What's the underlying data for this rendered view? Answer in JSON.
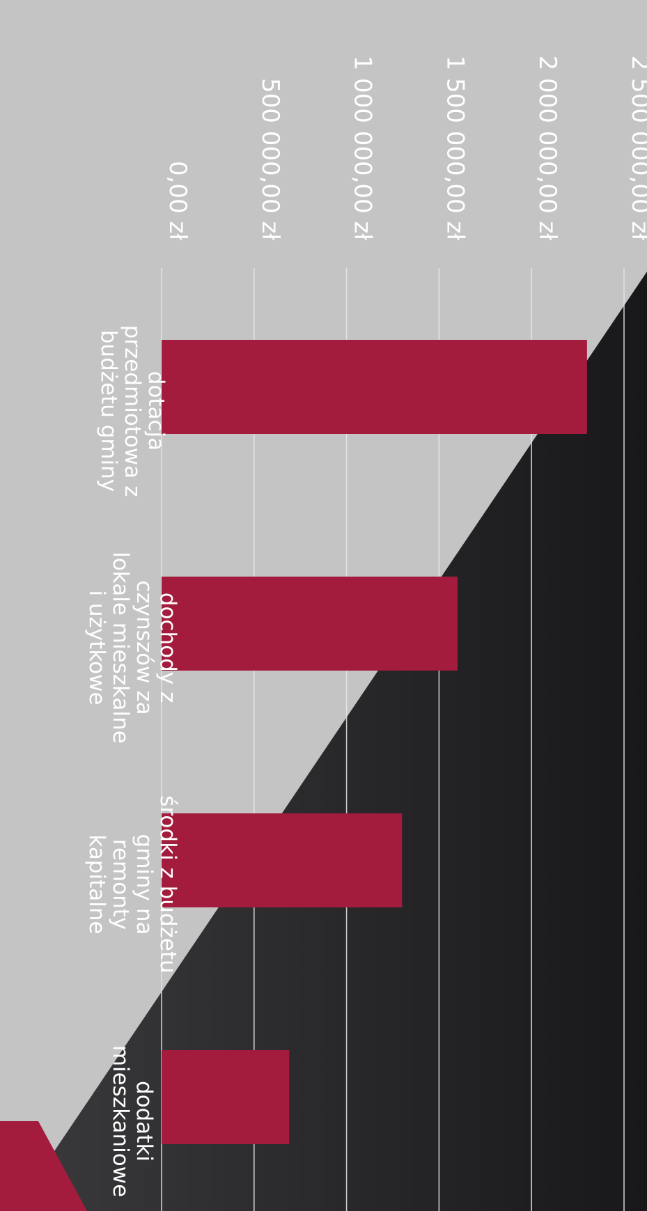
{
  "chart_data": {
    "type": "bar",
    "orientation": "vertical, rotated 90 degrees clockwise on the page",
    "categories": [
      [
        "dotacja",
        "przedmiotowa z",
        "budżetu gminy"
      ],
      [
        "dochody z",
        "czynszów za",
        "lokale mieszkalne",
        "i użytkowe"
      ],
      [
        "środki z budżetu",
        "gminy na",
        "remonty",
        "kapitalne"
      ],
      [
        "dodatki",
        "mieszkaniowe"
      ]
    ],
    "values": [
      2300000,
      1600000,
      1300000,
      690000
    ],
    "y_ticks": [
      "0,00 zł",
      "500 000,00 zł",
      "1 000 000,00 zł",
      "1 500 000,00 zł",
      "2 000 000,00 zł",
      "2 500 000,00 zł"
    ],
    "ylim": [
      0,
      2500000
    ],
    "grid": true,
    "title": "",
    "xlabel": "",
    "ylabel": ""
  },
  "colors": {
    "bar": "#a31c3d",
    "background_light": "#c4c4c4",
    "background_dark": "#2a2a2c",
    "background_dark_far": "#18181a",
    "accent_corner": "#a31c3d",
    "text": "#ffffff",
    "gridline": "#e8e8e8"
  }
}
